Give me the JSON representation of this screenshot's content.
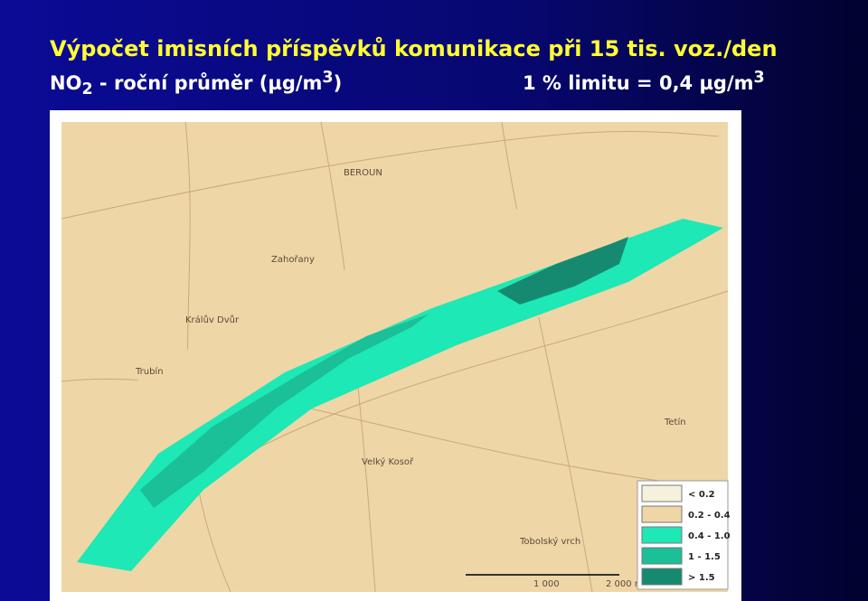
{
  "header": {
    "title": "Výpočet imisních příspěvků komunikace při 15 tis. voz./den",
    "subtitle": {
      "left": {
        "pre": "NO",
        "sub": "2",
        "mid": " - roční průměr (µg/m",
        "sup": "3",
        "post": ")"
      },
      "right": {
        "pre": "1 % limitu = 0,4 µg/m",
        "sup": "3"
      }
    }
  },
  "map": {
    "places": [
      "BEROUN",
      "Zahořany",
      "Králův Dvůr",
      "Trubín",
      "Tetín",
      "Velký Kosoř",
      "Tobolský vrch"
    ],
    "scale": [
      "1 000",
      "2 000 m"
    ],
    "legend": [
      {
        "label": "< 0.2",
        "color": "#f6f1dc"
      },
      {
        "label": "0.2 - 0.4",
        "color": "#efd6a6"
      },
      {
        "label": "0.4 - 1.0",
        "color": "#1de8b6"
      },
      {
        "label": "1 - 1.5",
        "color": "#1bbf98"
      },
      {
        "label": "> 1.5",
        "color": "#168a70"
      }
    ]
  }
}
